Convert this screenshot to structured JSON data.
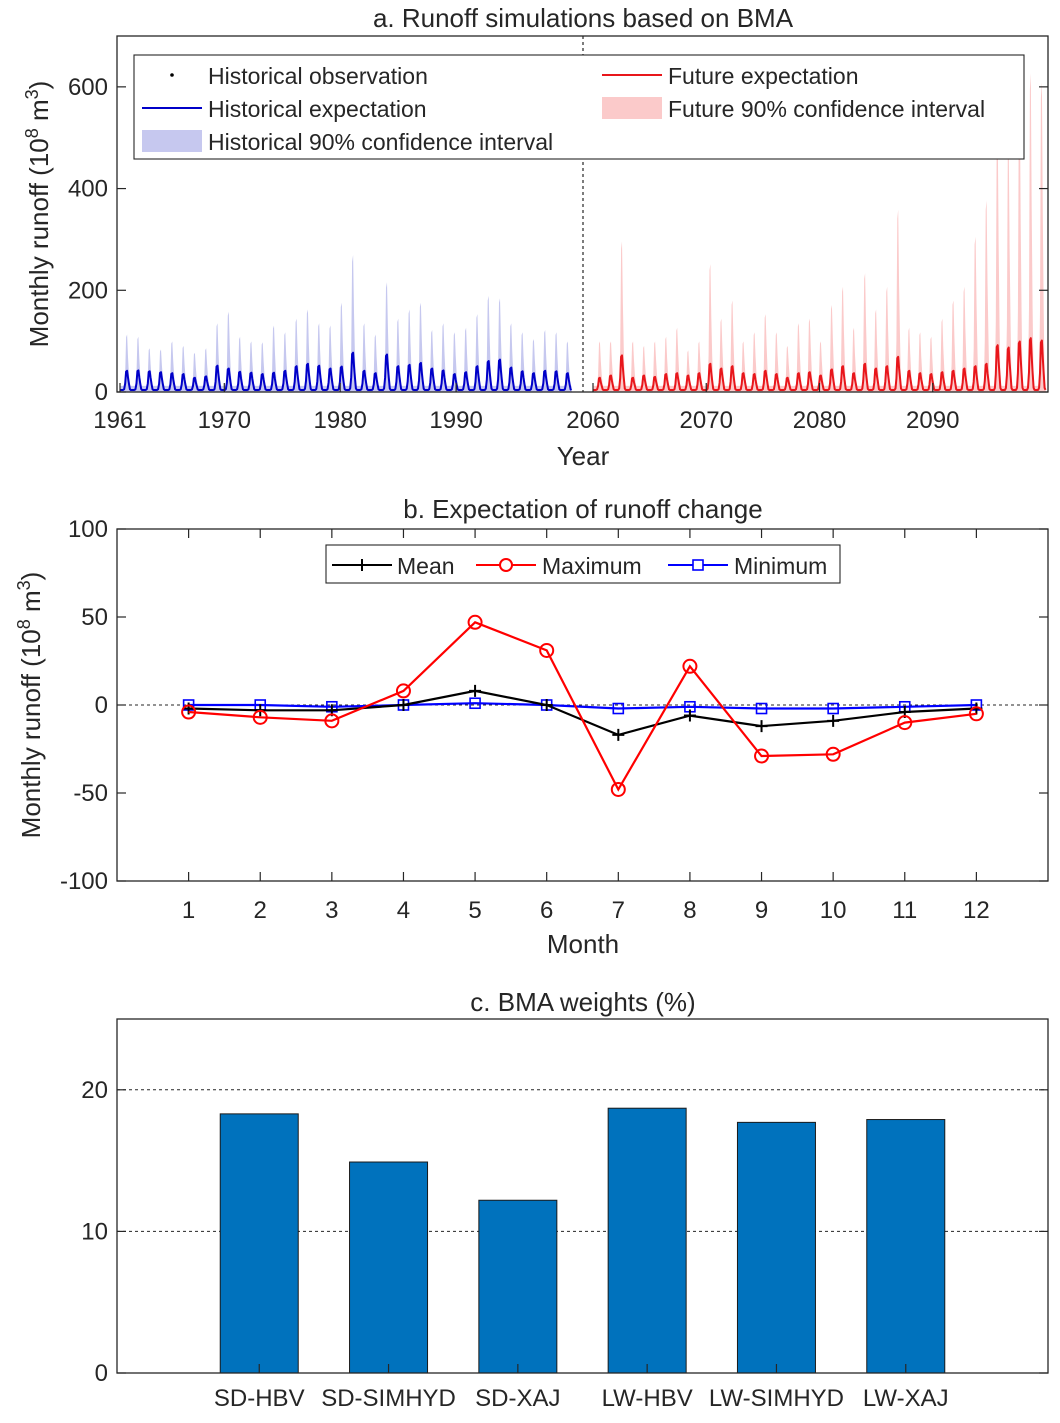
{
  "chart_data": [
    {
      "type": "area",
      "title": "a. Runoff simulations based on BMA",
      "xlabel": "Year",
      "ylabel": "Monthly runoff (10",
      "ylabel_sup1": "8",
      "ylabel_mid": " m",
      "ylabel_sup2": "3",
      "ylabel_end": ")",
      "ylim": [
        0,
        700
      ],
      "y_ticks": [
        0,
        200,
        400,
        600
      ],
      "historical_period": [
        1961,
        2000
      ],
      "future_period": [
        2060,
        2100
      ],
      "x_ticks_historical": [
        1961,
        1970,
        1980,
        1990
      ],
      "x_ticks_future": [
        2060,
        2070,
        2080,
        2090
      ],
      "series_colors": {
        "historical": "#0000c8",
        "historical_ci": "#c6c8ef",
        "future": "#e8161b",
        "future_ci": "#fbcaca"
      },
      "legend_placement": "top",
      "legend": [
        {
          "label": "Historical observation"
        },
        {
          "label": "Historical expectation"
        },
        {
          "label": "Historical 90% confidence interval"
        },
        {
          "label": "Future expectation"
        },
        {
          "label": "Future 90% confidence interval"
        }
      ],
      "historical_annual_peak": [
        45,
        46,
        44,
        42,
        40,
        38,
        30,
        33,
        56,
        50,
        43,
        41,
        38,
        41,
        45,
        55,
        60,
        56,
        50,
        54,
        84,
        45,
        40,
        80,
        55,
        58,
        62,
        50,
        46,
        38,
        42,
        55,
        66,
        69,
        52,
        44,
        40,
        45,
        44,
        40
      ],
      "historical_annual_ci_upper": [
        125,
        120,
        95,
        92,
        110,
        100,
        85,
        95,
        150,
        175,
        120,
        110,
        108,
        145,
        130,
        160,
        180,
        150,
        145,
        195,
        300,
        150,
        125,
        240,
        160,
        180,
        195,
        135,
        150,
        130,
        140,
        170,
        210,
        205,
        150,
        130,
        115,
        135,
        130,
        110
      ],
      "future_annual_peak": [
        30,
        35,
        78,
        30,
        35,
        32,
        38,
        40,
        35,
        40,
        60,
        50,
        55,
        40,
        38,
        45,
        38,
        30,
        40,
        42,
        35,
        48,
        55,
        40,
        60,
        50,
        55,
        75,
        45,
        40,
        38,
        42,
        45,
        50,
        55,
        60,
        100,
        95,
        108,
        115,
        110
      ],
      "future_annual_ci_upper": [
        110,
        110,
        330,
        110,
        100,
        110,
        120,
        140,
        90,
        110,
        280,
        160,
        200,
        110,
        130,
        170,
        130,
        100,
        150,
        160,
        110,
        190,
        230,
        140,
        260,
        180,
        230,
        400,
        140,
        130,
        120,
        160,
        200,
        230,
        340,
        420,
        580,
        550,
        650,
        700,
        680
      ]
    },
    {
      "type": "line",
      "title": "b. Expectation of runoff change",
      "xlabel": "Month",
      "ylabel": "Monthly runoff (10",
      "ylabel_sup1": "8",
      "ylabel_mid": " m",
      "ylabel_sup2": "3",
      "ylabel_end": ")",
      "ylim": [
        -100,
        100
      ],
      "y_ticks": [
        -100,
        -50,
        0,
        50,
        100
      ],
      "x": [
        1,
        2,
        3,
        4,
        5,
        6,
        7,
        8,
        9,
        10,
        11,
        12
      ],
      "xlim": [
        0,
        13
      ],
      "legend_placement": "top",
      "series": [
        {
          "name": "Mean",
          "color": "#000000",
          "marker": "plus",
          "values": [
            -2,
            -3,
            -3,
            0,
            8,
            0,
            -17,
            -6,
            -12,
            -9,
            -4,
            -2
          ]
        },
        {
          "name": "Maximum",
          "color": "#ff0000",
          "marker": "circle",
          "values": [
            -4,
            -7,
            -9,
            8,
            47,
            31,
            -48,
            22,
            -29,
            -28,
            -10,
            -5
          ]
        },
        {
          "name": "Minimum",
          "color": "#0000ff",
          "marker": "square",
          "values": [
            0,
            0,
            -1,
            0,
            1,
            0,
            -2,
            -1,
            -2,
            -2,
            -1,
            0
          ]
        }
      ]
    },
    {
      "type": "bar",
      "title": "c. BMA weights (%)",
      "categories": [
        "SD-HBV",
        "SD-SIMHYD",
        "SD-XAJ",
        "LW-HBV",
        "LW-SIMHYD",
        "LW-XAJ"
      ],
      "values": [
        18.3,
        14.9,
        12.2,
        18.7,
        17.7,
        17.9
      ],
      "ylim": [
        0,
        25
      ],
      "y_ticks": [
        0,
        10,
        20
      ],
      "bar_color": "#0072bd",
      "grid_lines": [
        10,
        20
      ]
    }
  ]
}
